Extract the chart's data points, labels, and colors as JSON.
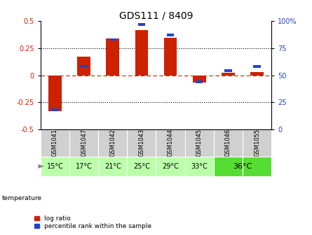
{
  "title": "GDS111 / 8409",
  "samples": [
    "GSM1041",
    "GSM1047",
    "GSM1042",
    "GSM1043",
    "GSM1044",
    "GSM1045",
    "GSM1046",
    "GSM1055"
  ],
  "temperatures": [
    "15°C",
    "17°C",
    "21°C",
    "25°C",
    "29°C",
    "33°C",
    "36°C",
    "36°C"
  ],
  "temp_groups": [
    1,
    1,
    1,
    1,
    1,
    1,
    2,
    2
  ],
  "log_ratio": [
    -0.335,
    0.17,
    0.34,
    0.42,
    0.345,
    -0.07,
    0.025,
    0.03
  ],
  "percentile_rank": [
    18,
    58,
    83,
    97,
    87,
    44,
    54,
    58
  ],
  "bar_color_red": "#cc2200",
  "bar_color_blue": "#2244cc",
  "bg_label_gray": "#d0d0d0",
  "bg_temp_light": "#bbffaa",
  "bg_temp_dark": "#55dd33",
  "ylim_left": [
    -0.5,
    0.5
  ],
  "ylim_right": [
    0,
    100
  ],
  "yticks_left": [
    -0.5,
    -0.25,
    0.0,
    0.25,
    0.5
  ],
  "yticks_right": [
    0,
    25,
    50,
    75,
    100
  ],
  "grid_lines_dotted": [
    -0.25,
    0.25
  ],
  "title_fontsize": 10,
  "tick_fontsize": 7,
  "sample_fontsize": 6,
  "temp_fontsize": 7
}
